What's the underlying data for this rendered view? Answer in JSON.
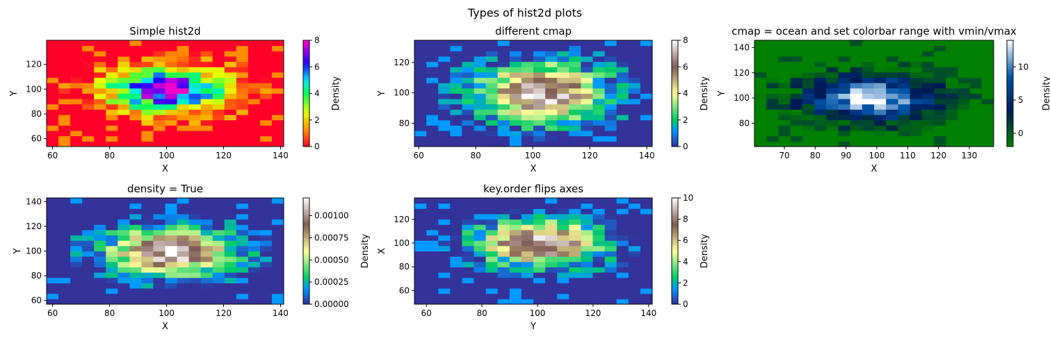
{
  "figure": {
    "suptitle": "Types of hist2d plots"
  },
  "chart_data": [
    {
      "type": "heatmap",
      "title": "Simple hist2d",
      "xlabel": "X",
      "ylabel": "Y",
      "colorbar_label": "Density",
      "cmap": "gist_rainbow",
      "vmin": 0,
      "vmax": 8,
      "xlim": [
        57.9,
        141.1
      ],
      "ylim": [
        53.6,
        139.4
      ],
      "xticks": [
        60,
        80,
        100,
        120,
        140
      ],
      "yticks": [
        60,
        80,
        100,
        120
      ],
      "cbar_ticks": [
        0,
        2,
        4,
        6,
        8
      ],
      "peak_x": 100,
      "peak_y": 100,
      "counts_nx": 20,
      "counts_ny": 20
    },
    {
      "type": "heatmap",
      "title": "different cmap",
      "xlabel": "X",
      "ylabel": "Y",
      "colorbar_label": "Density",
      "cmap": "terrain",
      "vmin": 0,
      "vmax": 8,
      "xlim": [
        58.5,
        141.9
      ],
      "ylim": [
        64.6,
        134.6
      ],
      "xticks": [
        60,
        80,
        100,
        120,
        140
      ],
      "yticks": [
        80,
        100,
        120
      ],
      "cbar_ticks": [
        0,
        2,
        4,
        6,
        8
      ],
      "peak_x": 103,
      "peak_y": 100,
      "counts_nx": 20,
      "counts_ny": 20
    },
    {
      "type": "heatmap",
      "title": "cmap = ocean and set colorbar range with vmin/vmax",
      "xlabel": "X",
      "ylabel": "Y",
      "colorbar_label": "Density",
      "cmap": "ocean",
      "vmin": -2,
      "vmax": 14,
      "xlim": [
        60.3,
        137.9
      ],
      "ylim": [
        61.6,
        145.7
      ],
      "xticks": [
        70,
        80,
        90,
        100,
        110,
        120,
        130
      ],
      "yticks": [
        80,
        100,
        120,
        140
      ],
      "cbar_ticks": [
        0,
        5,
        10
      ],
      "peak_x": 98,
      "peak_y": 100,
      "counts_nx": 20,
      "counts_ny": 20
    },
    {
      "type": "heatmap",
      "title": "density = True",
      "xlabel": "X",
      "ylabel": "Y",
      "colorbar_label": "Density",
      "cmap": "terrain",
      "vmin": 0,
      "vmax": 0.0012,
      "xlim": [
        57.9,
        141.1
      ],
      "ylim": [
        57.0,
        143.0
      ],
      "xticks": [
        60,
        80,
        100,
        120,
        140
      ],
      "yticks": [
        60,
        80,
        100,
        120,
        140
      ],
      "cbar_ticks": [
        "0.00000",
        "0.00025",
        "0.00050",
        "0.00075",
        "0.00100"
      ],
      "cbar_tick_values": [
        0,
        0.00025,
        0.0005,
        0.00075,
        0.001
      ],
      "peak_x": 102,
      "peak_y": 100,
      "counts_nx": 20,
      "counts_ny": 20
    },
    {
      "type": "heatmap",
      "title": "key.order flips axes",
      "xlabel": "Y",
      "ylabel": "X",
      "colorbar_label": "Density",
      "cmap": "terrain",
      "vmin": 0,
      "vmax": 10,
      "xlim": [
        55.7,
        141.3
      ],
      "ylim": [
        48.5,
        138.0
      ],
      "xticks": [
        60,
        80,
        100,
        120,
        140
      ],
      "yticks": [
        60,
        80,
        100,
        120
      ],
      "cbar_ticks": [
        0,
        2,
        4,
        6,
        8,
        10
      ],
      "peak_x": 101,
      "peak_y": 100,
      "counts_nx": 20,
      "counts_ny": 20
    }
  ]
}
